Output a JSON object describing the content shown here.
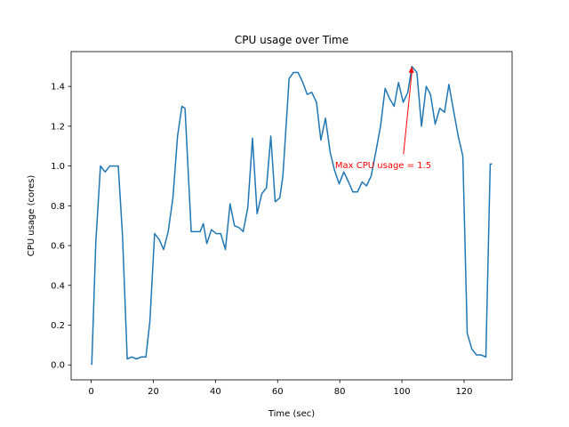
{
  "chart_data": {
    "type": "line",
    "title": "CPU usage over Time",
    "xlabel": "Time (sec)",
    "ylabel": "CPU usage (cores)",
    "xlim": [
      -6.45,
      135.45
    ],
    "ylim": [
      -0.075,
      1.575
    ],
    "xticks": [
      0,
      20,
      40,
      60,
      80,
      100,
      120
    ],
    "yticks": [
      0.0,
      0.2,
      0.4,
      0.6,
      0.8,
      1.0,
      1.2,
      1.4
    ],
    "ytick_format": 1,
    "grid": false,
    "line_color": "#1f77b4",
    "annotation": {
      "text": "Max CPU usage = 1.5",
      "color": "#ff0000",
      "point": [
        103.2,
        1.5
      ],
      "text_pos": [
        78.5,
        0.99
      ]
    },
    "series": [
      {
        "x": [
          0.2,
          1.5,
          3.0,
          4.5,
          6.0,
          7.5,
          8.7,
          10.1,
          11.6,
          13.1,
          14.6,
          16.1,
          17.6,
          18.9,
          20.4,
          21.9,
          23.3,
          24.8,
          26.3,
          27.8,
          29.2,
          30.2,
          32.2,
          33.6,
          35.1,
          36.1,
          37.2,
          38.7,
          40.2,
          41.7,
          43.2,
          44.7,
          46.1,
          47.6,
          48.9,
          50.4,
          51.9,
          53.4,
          54.9,
          56.4,
          57.8,
          59.2,
          60.7,
          61.7,
          63.7,
          65.1,
          66.6,
          68.1,
          69.5,
          71.0,
          72.5,
          73.9,
          75.4,
          76.9,
          78.3,
          79.8,
          81.3,
          82.8,
          84.2,
          85.7,
          87.2,
          88.6,
          90.1,
          91.6,
          93.1,
          94.6,
          96.0,
          97.5,
          98.9,
          100.4,
          101.9,
          103.2,
          104.8,
          106.3,
          107.8,
          109.2,
          110.7,
          112.2,
          113.7,
          115.1,
          116.6,
          118.1,
          119.6,
          121.0,
          122.5,
          124.0,
          125.5,
          127.0,
          128.4,
          129.0
        ],
        "y": [
          0.0,
          0.62,
          1.0,
          0.97,
          1.0,
          1.0,
          1.0,
          0.65,
          0.03,
          0.04,
          0.03,
          0.04,
          0.04,
          0.22,
          0.66,
          0.63,
          0.58,
          0.67,
          0.84,
          1.15,
          1.3,
          1.29,
          0.67,
          0.67,
          0.67,
          0.71,
          0.61,
          0.68,
          0.66,
          0.66,
          0.58,
          0.81,
          0.7,
          0.69,
          0.67,
          0.79,
          1.14,
          0.76,
          0.86,
          0.89,
          1.15,
          0.82,
          0.84,
          0.95,
          1.44,
          1.47,
          1.47,
          1.42,
          1.36,
          1.37,
          1.32,
          1.13,
          1.24,
          1.07,
          0.98,
          0.91,
          0.97,
          0.92,
          0.87,
          0.87,
          0.92,
          0.9,
          0.95,
          1.07,
          1.2,
          1.39,
          1.34,
          1.3,
          1.42,
          1.32,
          1.37,
          1.5,
          1.47,
          1.2,
          1.4,
          1.36,
          1.21,
          1.29,
          1.27,
          1.41,
          1.28,
          1.15,
          1.05,
          0.16,
          0.08,
          0.05,
          0.05,
          0.04,
          1.01,
          1.01
        ]
      }
    ]
  }
}
